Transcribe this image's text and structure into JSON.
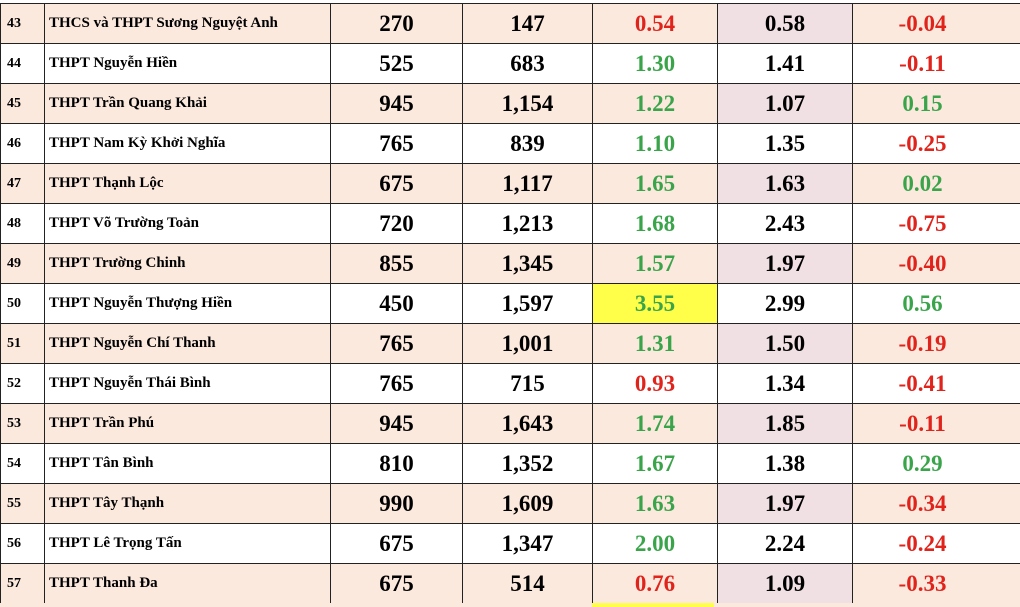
{
  "rows": [
    {
      "no": "43",
      "name": "THCS và THPT Sương Nguyệt Anh",
      "quota": "270",
      "registered": "147",
      "ratio": "0.54",
      "ratio_color": "red",
      "prev_ratio": "0.58",
      "diff": "-0.04",
      "diff_color": "red",
      "highlight": false
    },
    {
      "no": "44",
      "name": "THPT Nguyễn Hiền",
      "quota": "525",
      "registered": "683",
      "ratio": "1.30",
      "ratio_color": "green",
      "prev_ratio": "1.41",
      "diff": "-0.11",
      "diff_color": "red",
      "highlight": false
    },
    {
      "no": "45",
      "name": "THPT Trần Quang Khải",
      "quota": "945",
      "registered": "1,154",
      "ratio": "1.22",
      "ratio_color": "green",
      "prev_ratio": "1.07",
      "diff": "0.15",
      "diff_color": "green",
      "highlight": false
    },
    {
      "no": "46",
      "name": "THPT Nam Kỳ Khởi Nghĩa",
      "quota": "765",
      "registered": "839",
      "ratio": "1.10",
      "ratio_color": "green",
      "prev_ratio": "1.35",
      "diff": "-0.25",
      "diff_color": "red",
      "highlight": false
    },
    {
      "no": "47",
      "name": "THPT Thạnh Lộc",
      "quota": "675",
      "registered": "1,117",
      "ratio": "1.65",
      "ratio_color": "green",
      "prev_ratio": "1.63",
      "diff": "0.02",
      "diff_color": "green",
      "highlight": false
    },
    {
      "no": "48",
      "name": "THPT Võ Trường Toản",
      "quota": "720",
      "registered": "1,213",
      "ratio": "1.68",
      "ratio_color": "green",
      "prev_ratio": "2.43",
      "diff": "-0.75",
      "diff_color": "red",
      "highlight": false
    },
    {
      "no": "49",
      "name": "THPT Trường Chinh",
      "quota": "855",
      "registered": "1,345",
      "ratio": "1.57",
      "ratio_color": "green",
      "prev_ratio": "1.97",
      "diff": "-0.40",
      "diff_color": "red",
      "highlight": false
    },
    {
      "no": "50",
      "name": "THPT Nguyễn Thượng Hiền",
      "quota": "450",
      "registered": "1,597",
      "ratio": "3.55",
      "ratio_color": "green",
      "prev_ratio": "2.99",
      "diff": "0.56",
      "diff_color": "green",
      "highlight": true
    },
    {
      "no": "51",
      "name": "THPT Nguyễn Chí Thanh",
      "quota": "765",
      "registered": "1,001",
      "ratio": "1.31",
      "ratio_color": "green",
      "prev_ratio": "1.50",
      "diff": "-0.19",
      "diff_color": "red",
      "highlight": false
    },
    {
      "no": "52",
      "name": "THPT Nguyễn Thái Bình",
      "quota": "765",
      "registered": "715",
      "ratio": "0.93",
      "ratio_color": "red",
      "prev_ratio": "1.34",
      "diff": "-0.41",
      "diff_color": "red",
      "highlight": false
    },
    {
      "no": "53",
      "name": "THPT Trần Phú",
      "quota": "945",
      "registered": "1,643",
      "ratio": "1.74",
      "ratio_color": "green",
      "prev_ratio": "1.85",
      "diff": "-0.11",
      "diff_color": "red",
      "highlight": false
    },
    {
      "no": "54",
      "name": "THPT Tân Bình",
      "quota": "810",
      "registered": "1,352",
      "ratio": "1.67",
      "ratio_color": "green",
      "prev_ratio": "1.38",
      "diff": "0.29",
      "diff_color": "green",
      "highlight": false
    },
    {
      "no": "55",
      "name": "THPT Tây Thạnh",
      "quota": "990",
      "registered": "1,609",
      "ratio": "1.63",
      "ratio_color": "green",
      "prev_ratio": "1.97",
      "diff": "-0.34",
      "diff_color": "red",
      "highlight": false
    },
    {
      "no": "56",
      "name": "THPT Lê Trọng Tấn",
      "quota": "675",
      "registered": "1,347",
      "ratio": "2.00",
      "ratio_color": "green",
      "prev_ratio": "2.24",
      "diff": "-0.24",
      "diff_color": "red",
      "highlight": false
    },
    {
      "no": "57",
      "name": "THPT Thanh Đa",
      "quota": "675",
      "registered": "514",
      "ratio": "0.76",
      "ratio_color": "red",
      "prev_ratio": "1.09",
      "diff": "-0.33",
      "diff_color": "red",
      "highlight": false
    }
  ],
  "colors": {
    "row_tint": "#fce9de",
    "prev_ratio_tint": "#f0dfe3",
    "highlight": "#ffff4a",
    "green_text": "#3aa44a",
    "red_text": "#e0231b"
  }
}
